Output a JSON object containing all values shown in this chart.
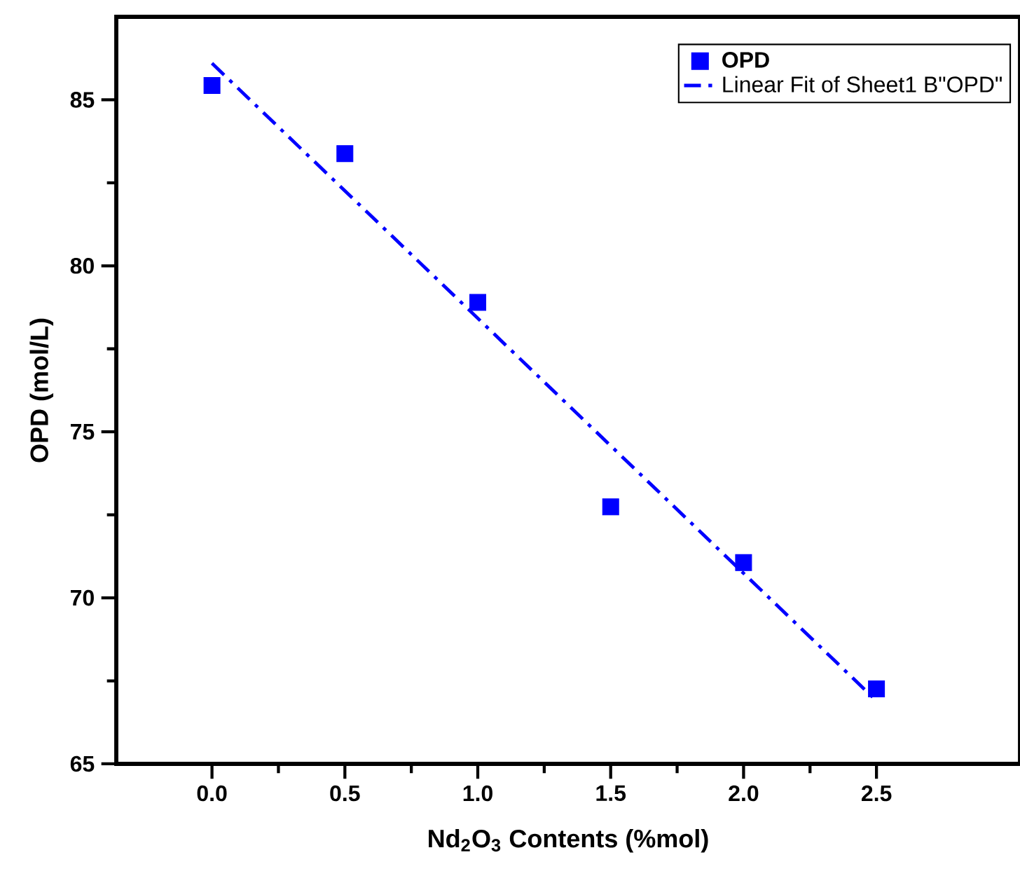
{
  "chart_data": {
    "type": "scatter",
    "xlabel": "Nd$_{2}$O$_{3}$ Contents (%mol)",
    "ylabel": "OPD (mol/L)",
    "xlim": [
      -0.36,
      3.04
    ],
    "xticks": [
      {
        "value": 0,
        "label": "0.0"
      },
      {
        "value": 0.5,
        "label": "0.5"
      },
      {
        "value": 1,
        "label": "1.0"
      },
      {
        "value": 1.5,
        "label": "1.5"
      },
      {
        "value": 2,
        "label": "2.0"
      },
      {
        "value": 2.5,
        "label": "2.5"
      }
    ],
    "ylim": [
      65,
      87.5
    ],
    "yticks": [
      65,
      70,
      75,
      80,
      85
    ],
    "grid": false,
    "legend": "top right",
    "series": [
      {
        "name": "OPD",
        "marker": "square",
        "color": "#0000ff",
        "x": [
          0,
          0.5,
          1,
          1.5,
          2,
          2.5
        ],
        "values": [
          85.43,
          83.38,
          78.9,
          72.74,
          71.06,
          67.26
        ]
      },
      {
        "name": "Linear Fit of Sheet1 B\"OPD\"",
        "type": "line",
        "marker": "none",
        "line_style": "dashdot",
        "color": "#0000ff",
        "x": [
          0,
          2.5
        ],
        "values": [
          86.1,
          66.9
        ]
      }
    ]
  }
}
